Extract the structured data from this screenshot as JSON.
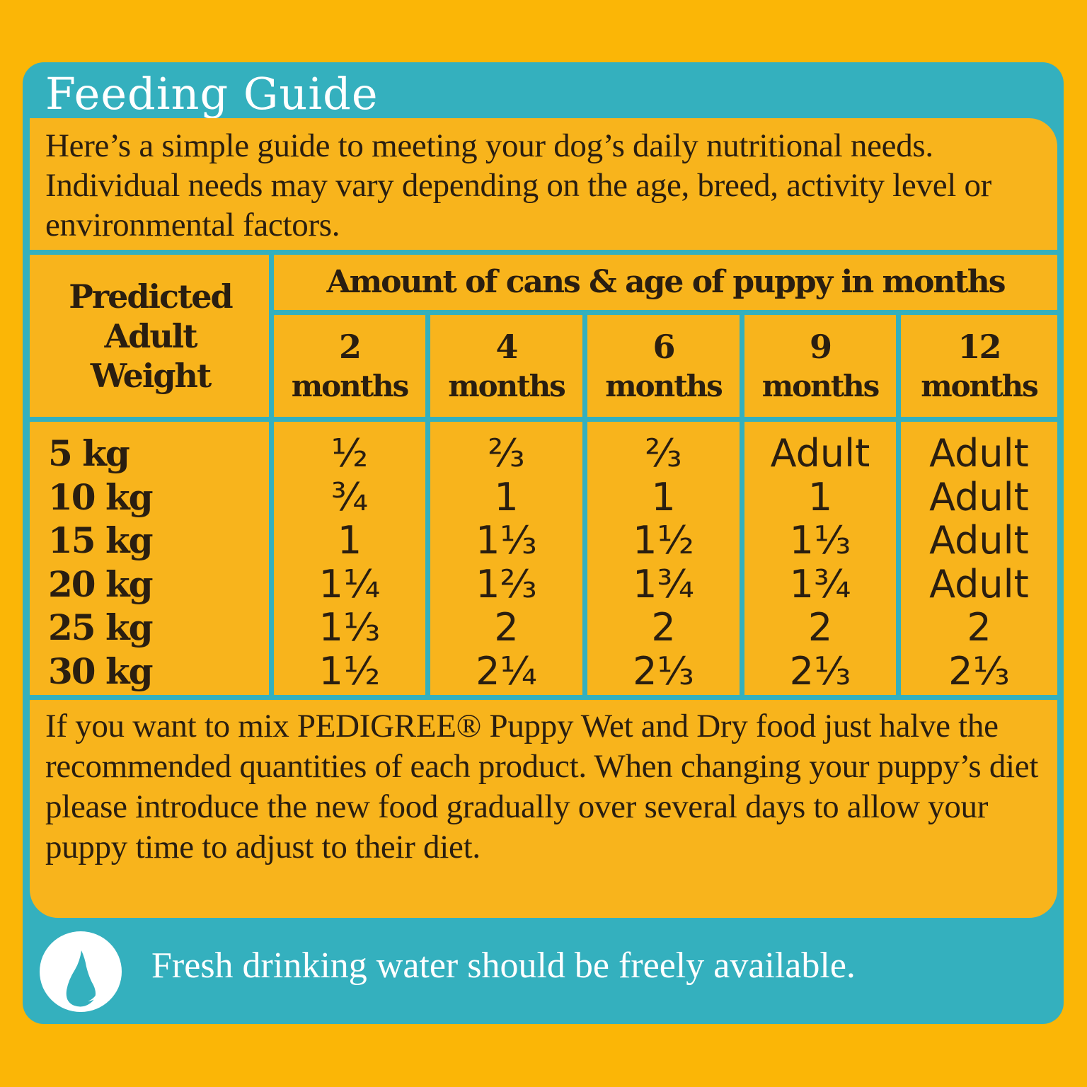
{
  "title": "Feeding Guide",
  "intro": "Here’s a simple guide to meeting your dog’s daily nutritional needs.  Individual needs may vary depending on the age, breed, activity level or environmental factors.",
  "table": {
    "weight_header": "Predicted Adult Weight",
    "amount_header": "Amount of cans & age of puppy in months",
    "columns": [
      {
        "num": "2",
        "unit": "months",
        "values": [
          "½",
          "¾",
          "1",
          "1¼",
          "1⅓",
          "1½"
        ]
      },
      {
        "num": "4",
        "unit": "months",
        "values": [
          "⅔",
          "1",
          "1⅓",
          "1⅔",
          "2",
          "2¼"
        ]
      },
      {
        "num": "6",
        "unit": "months",
        "values": [
          "⅔",
          "1",
          "1½",
          "1¾",
          "2",
          "2⅓"
        ]
      },
      {
        "num": "9",
        "unit": "months",
        "values": [
          "Adult",
          "1",
          "1⅓",
          "1¾",
          "2",
          "2⅓"
        ]
      },
      {
        "num": "12",
        "unit": "months",
        "values": [
          "Adult",
          "Adult",
          "Adult",
          "Adult",
          "2",
          "2⅓"
        ]
      }
    ],
    "weights": [
      "5 kg",
      "10 kg",
      "15 kg",
      "20 kg",
      "25 kg",
      "30 kg"
    ]
  },
  "footer": "If you want to mix PEDIGREE® Puppy Wet and Dry food just halve the recommended quantities of each product. When changing your puppy’s diet please introduce the new food gradually over several days to allow your puppy time to adjust to their diet.",
  "water_note": "Fresh drinking water should be freely available.",
  "icon": "water-drop-icon",
  "colors": {
    "background": "#FBB606",
    "panel": "#34B0BE",
    "inner": "#F8B41C"
  }
}
